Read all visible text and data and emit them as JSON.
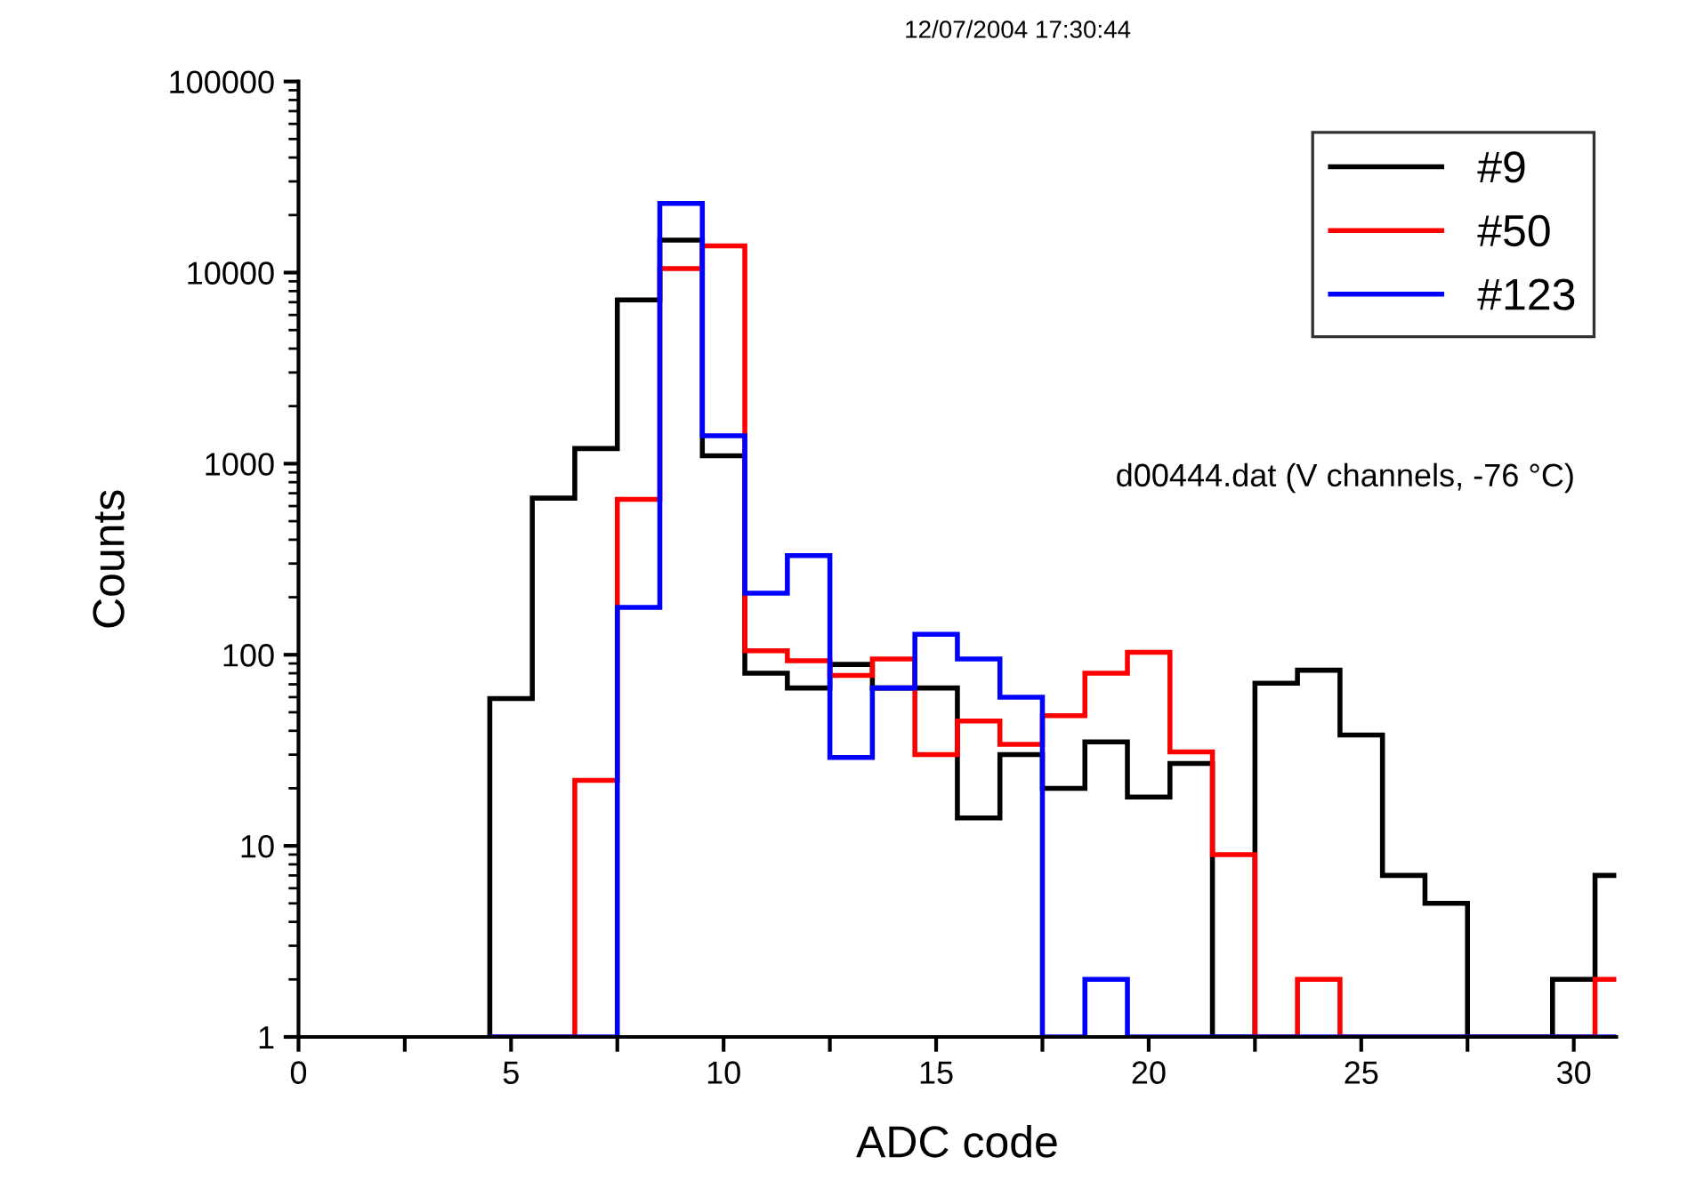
{
  "chart_data": {
    "type": "histogram",
    "xlabel": "ADC code",
    "ylabel": "Counts",
    "annotations": [
      "12/07/2004 17:30:44",
      "d00444.dat (V channels, -76 °C)"
    ],
    "bins": [
      4.5,
      5.5,
      6.5,
      7.5,
      8.5,
      9.5,
      10.5,
      11.5,
      12.5,
      13.5,
      14.5,
      15.5,
      16.5,
      17.5,
      18.5,
      19.5,
      20.5,
      21.5,
      22.5,
      23.5,
      24.5,
      25.5,
      26.5,
      27.5,
      28.5,
      29.5,
      30.5,
      31.5
    ],
    "series": [
      {
        "name": "#9",
        "color": "#000000",
        "values": [
          59,
          660,
          1200,
          7200,
          14800,
          1100,
          80,
          67,
          89,
          67,
          67,
          14,
          30,
          20,
          35,
          18,
          27,
          1,
          71,
          83,
          38,
          7,
          5,
          1,
          1,
          2,
          7
        ]
      },
      {
        "name": "#50",
        "color": "#ff0000",
        "values": [
          1,
          1,
          22,
          650,
          10500,
          13800,
          105,
          93,
          78,
          95,
          30,
          45,
          34,
          48,
          80,
          103,
          31,
          9,
          1,
          2,
          1,
          1,
          1,
          1,
          1,
          1,
          2
        ]
      },
      {
        "name": "#123",
        "color": "#0000ff",
        "values": [
          1,
          1,
          1,
          177,
          23000,
          1400,
          210,
          330,
          29,
          67,
          128,
          95,
          60,
          1,
          2,
          1,
          1,
          1,
          1,
          1,
          1,
          1,
          1,
          1,
          1,
          1,
          1
        ]
      }
    ],
    "xlim": [
      0,
      31
    ],
    "xticks": [
      0,
      {
        "value": 2.5,
        "label": null
      },
      5,
      {
        "value": 7.5,
        "label": null
      },
      10,
      {
        "value": 12.5,
        "label": null
      },
      15,
      {
        "value": 17.5,
        "label": null
      },
      20,
      {
        "value": 22.5,
        "label": null
      },
      25,
      {
        "value": 27.5,
        "label": null
      },
      30
    ],
    "ylim": [
      1,
      100000
    ],
    "yticks": [
      1,
      10,
      100,
      1000,
      10000,
      100000
    ],
    "log": "y",
    "grid": false,
    "legend": "top right"
  }
}
